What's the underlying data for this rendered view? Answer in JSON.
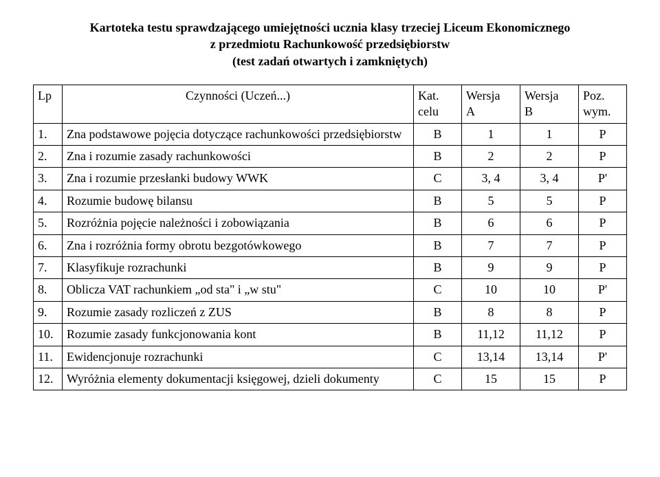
{
  "title": {
    "line1": "Kartoteka testu sprawdzającego umiejętności ucznia klasy trzeciej Liceum Ekonomicznego",
    "line2": "z przedmiotu Rachunkowość przedsiębiorstw",
    "line3": "(test zadań otwartych i zamkniętych)"
  },
  "headers": {
    "lp": "Lp",
    "desc": "Czynności (Uczeń...)",
    "kat_line1": "Kat.",
    "kat_line2": "celu",
    "wa_line1": "Wersja",
    "wa_line2": "A",
    "wb_line1": "Wersja",
    "wb_line2": "B",
    "poz_line1": "Poz.",
    "poz_line2": "wym."
  },
  "rows": [
    {
      "lp": "1.",
      "desc": "Zna podstawowe pojęcia dotyczące rachunkowości przedsiębiorstw",
      "kat": "B",
      "wa": "1",
      "wb": "1",
      "poz": "P"
    },
    {
      "lp": "2.",
      "desc": "Zna i rozumie zasady rachunkowości",
      "kat": "B",
      "wa": "2",
      "wb": "2",
      "poz": "P"
    },
    {
      "lp": "3.",
      "desc": "Zna i rozumie przesłanki budowy WWK",
      "kat": "C",
      "wa": "3, 4",
      "wb": "3, 4",
      "poz": "P'"
    },
    {
      "lp": "4.",
      "desc": "Rozumie budowę bilansu",
      "kat": "B",
      "wa": "5",
      "wb": "5",
      "poz": "P"
    },
    {
      "lp": "5.",
      "desc": "Rozróżnia pojęcie należności i zobowiązania",
      "kat": "B",
      "wa": "6",
      "wb": "6",
      "poz": "P"
    },
    {
      "lp": "6.",
      "desc": "Zna i rozróżnia formy obrotu bezgotówkowego",
      "kat": "B",
      "wa": "7",
      "wb": "7",
      "poz": "P"
    },
    {
      "lp": "7.",
      "desc": "Klasyfikuje rozrachunki",
      "kat": "B",
      "wa": "9",
      "wb": "9",
      "poz": "P"
    },
    {
      "lp": "8.",
      "desc": "Oblicza VAT rachunkiem „od sta\" i „w stu\"",
      "kat": "C",
      "wa": "10",
      "wb": "10",
      "poz": "P'"
    },
    {
      "lp": "9.",
      "desc": "Rozumie zasady rozliczeń z ZUS",
      "kat": "B",
      "wa": "8",
      "wb": "8",
      "poz": "P"
    },
    {
      "lp": "10.",
      "desc": "Rozumie zasady funkcjonowania kont",
      "kat": "B",
      "wa": "11,12",
      "wb": "11,12",
      "poz": "P"
    },
    {
      "lp": "11.",
      "desc": "Ewidencjonuje rozrachunki",
      "kat": "C",
      "wa": "13,14",
      "wb": "13,14",
      "poz": "P'"
    },
    {
      "lp": "12.",
      "desc": "Wyróżnia elementy dokumentacji księgowej, dzieli dokumenty",
      "kat": "C",
      "wa": "15",
      "wb": "15",
      "poz": "P"
    }
  ]
}
